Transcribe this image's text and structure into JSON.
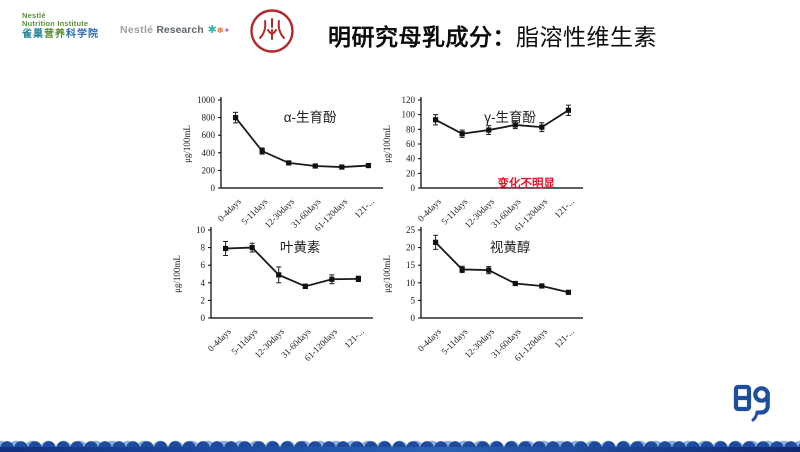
{
  "slide": {
    "title_bold": "明研究母乳成分：",
    "title_regular": "脂溶性维生素"
  },
  "logos": {
    "nni": {
      "en_line1": "Nestlé",
      "en_line2": "Nutrition Institute",
      "cn_part1": "雀巢",
      "cn_part2": "营养",
      "cn_part3": "科学院"
    },
    "research": {
      "brand": "Nestlé",
      "word": "Research",
      "decor": [
        "✱",
        "✽",
        "✦"
      ]
    }
  },
  "colors": {
    "nni_green": "#5d8f3a",
    "nni_teal": "#1f7f95",
    "nni_blue": "#2b6cb0",
    "nestle_gray": "#9aa0a6",
    "research_gray": "#5f666c",
    "pku_red": "#b5282c",
    "ming_blue": "#1d4f9e",
    "annotation_red": "#e8112d",
    "line_black": "#1a1a1a"
  },
  "chart_data": [
    {
      "id": "alpha-tocopherol",
      "type": "line",
      "title": "α-生育酚",
      "ylabel": "μg/100mL",
      "ylim": [
        0,
        1000
      ],
      "yticks": [
        0,
        200,
        400,
        600,
        800,
        1000
      ],
      "categories": [
        "0-4days",
        "5-11days",
        "12-30days",
        "31-60days",
        "61-120days",
        "121-..."
      ],
      "values": [
        800,
        420,
        285,
        250,
        238,
        255
      ],
      "errors": [
        60,
        35,
        20,
        15,
        12,
        15
      ],
      "annotation": null
    },
    {
      "id": "gamma-tocopherol",
      "type": "line",
      "title": "γ-生育酚",
      "ylabel": "μg/100mL",
      "ylim": [
        0,
        120
      ],
      "yticks": [
        0,
        20,
        40,
        60,
        80,
        100,
        120
      ],
      "categories": [
        "0-4days",
        "5-11days",
        "12-30days",
        "31-60days",
        "61-120days",
        "121-..."
      ],
      "values": [
        93,
        74,
        79,
        86,
        83,
        106
      ],
      "errors": [
        7,
        5,
        6,
        5,
        6,
        7
      ],
      "annotation": {
        "text": "变化不明显",
        "color": "#e8112d"
      }
    },
    {
      "id": "lutein",
      "type": "line",
      "title": "叶黄素",
      "ylabel": "μg/100mL",
      "ylim": [
        0,
        10
      ],
      "yticks": [
        0,
        2,
        4,
        6,
        8,
        10
      ],
      "categories": [
        "0-4days",
        "5-11days",
        "12-30days",
        "31-60days",
        "61-120days",
        "121-..."
      ],
      "values": [
        7.9,
        8.0,
        4.9,
        3.6,
        4.4,
        4.45
      ],
      "errors": [
        0.8,
        0.5,
        0.9,
        0.25,
        0.5,
        0.3
      ],
      "annotation": null
    },
    {
      "id": "retinol",
      "type": "line",
      "title": "视黄醇",
      "ylabel": "μg/100mL",
      "ylim": [
        0,
        25
      ],
      "yticks": [
        0,
        5,
        10,
        15,
        20,
        25
      ],
      "categories": [
        "0-4days",
        "5-11days",
        "12-30days",
        "31-60days",
        "61-120days",
        "121-..."
      ],
      "values": [
        21.5,
        13.8,
        13.6,
        9.8,
        9.1,
        7.3
      ],
      "errors": [
        2.0,
        0.9,
        1.0,
        0.5,
        0.5,
        0.4
      ],
      "annotation": null
    }
  ]
}
